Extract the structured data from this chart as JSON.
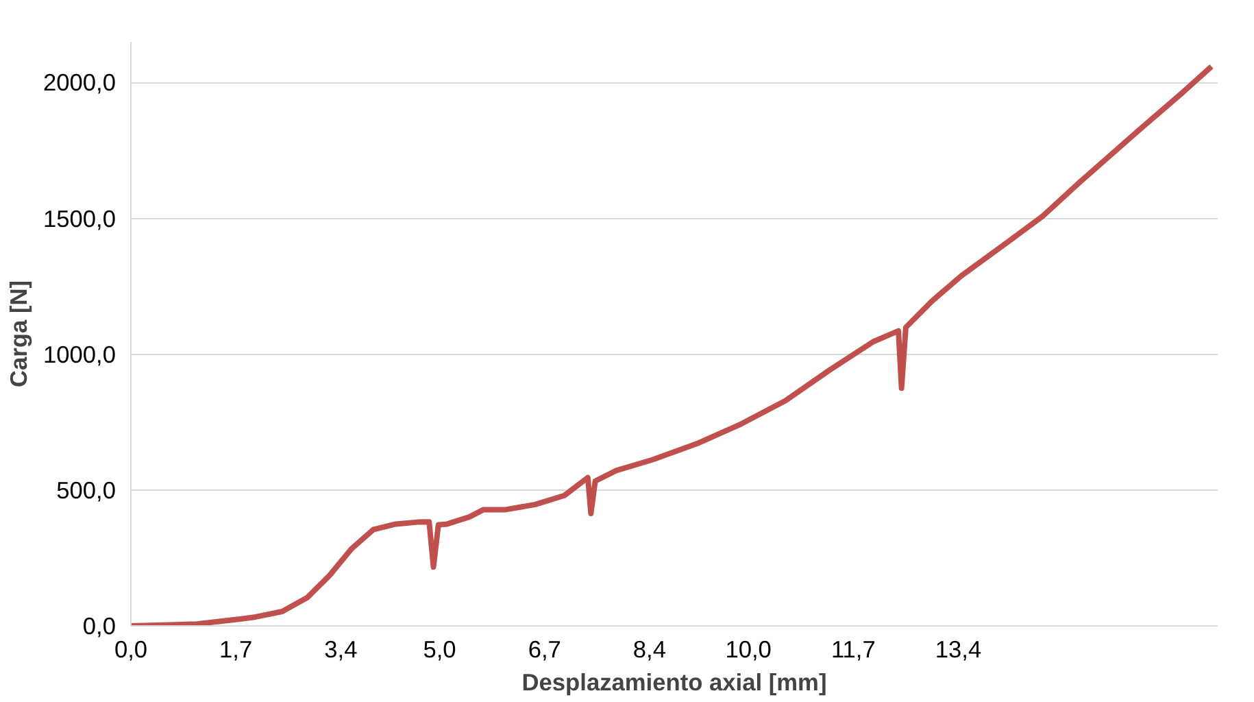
{
  "chart_data": {
    "type": "line",
    "xlabel": "Desplazamiento axial [mm]",
    "ylabel": "Carga [N]",
    "x": [
      0,
      1.07,
      1.79,
      2.02,
      2.45,
      2.86,
      3.21,
      3.57,
      3.93,
      4.29,
      4.64,
      4.83,
      4.9,
      4.98,
      5.12,
      5.48,
      5.71,
      6.07,
      6.55,
      7.02,
      7.4,
      7.45,
      7.52,
      7.86,
      8.45,
      9.17,
      9.88,
      10.6,
      11.31,
      12.02,
      12.43,
      12.48,
      12.55,
      12.98,
      13.45,
      14.17,
      14.76,
      15.36,
      16.31,
      17.02,
      17.5
    ],
    "series": [
      {
        "color": "#c0504d",
        "values": [
          0,
          7,
          26,
          33,
          53,
          105,
          184,
          283,
          355,
          375,
          382,
          383,
          217,
          372,
          375,
          401,
          428,
          428,
          447,
          480,
          546,
          414,
          533,
          572,
          612,
          671,
          743,
          829,
          941,
          1046,
          1086,
          875,
          1099,
          1197,
          1289,
          1408,
          1507,
          1632,
          1822,
          1961,
          2059
        ]
      }
    ],
    "xlim": [
      0,
      17.6
    ],
    "ylim": [
      0,
      2150
    ],
    "xticks": [
      {
        "value": 0,
        "label": "0,0"
      },
      {
        "value": 1.7,
        "label": "1,7"
      },
      {
        "value": 3.4,
        "label": "3,4"
      },
      {
        "value": 5.0,
        "label": "5,0"
      },
      {
        "value": 6.7,
        "label": "6,7"
      },
      {
        "value": 8.4,
        "label": "8,4"
      },
      {
        "value": 10.0,
        "label": "10,0"
      },
      {
        "value": 11.7,
        "label": "11,7"
      },
      {
        "value": 13.4,
        "label": "13,4"
      }
    ],
    "yticks": [
      {
        "value": 0,
        "label": "0,0"
      },
      {
        "value": 500,
        "label": "500,0"
      },
      {
        "value": 1000,
        "label": "1000,0"
      },
      {
        "value": 1500,
        "label": "1500,0"
      },
      {
        "value": 2000,
        "label": "2000,0"
      }
    ],
    "grid": "y",
    "marker": "none",
    "line_style": "solid"
  }
}
